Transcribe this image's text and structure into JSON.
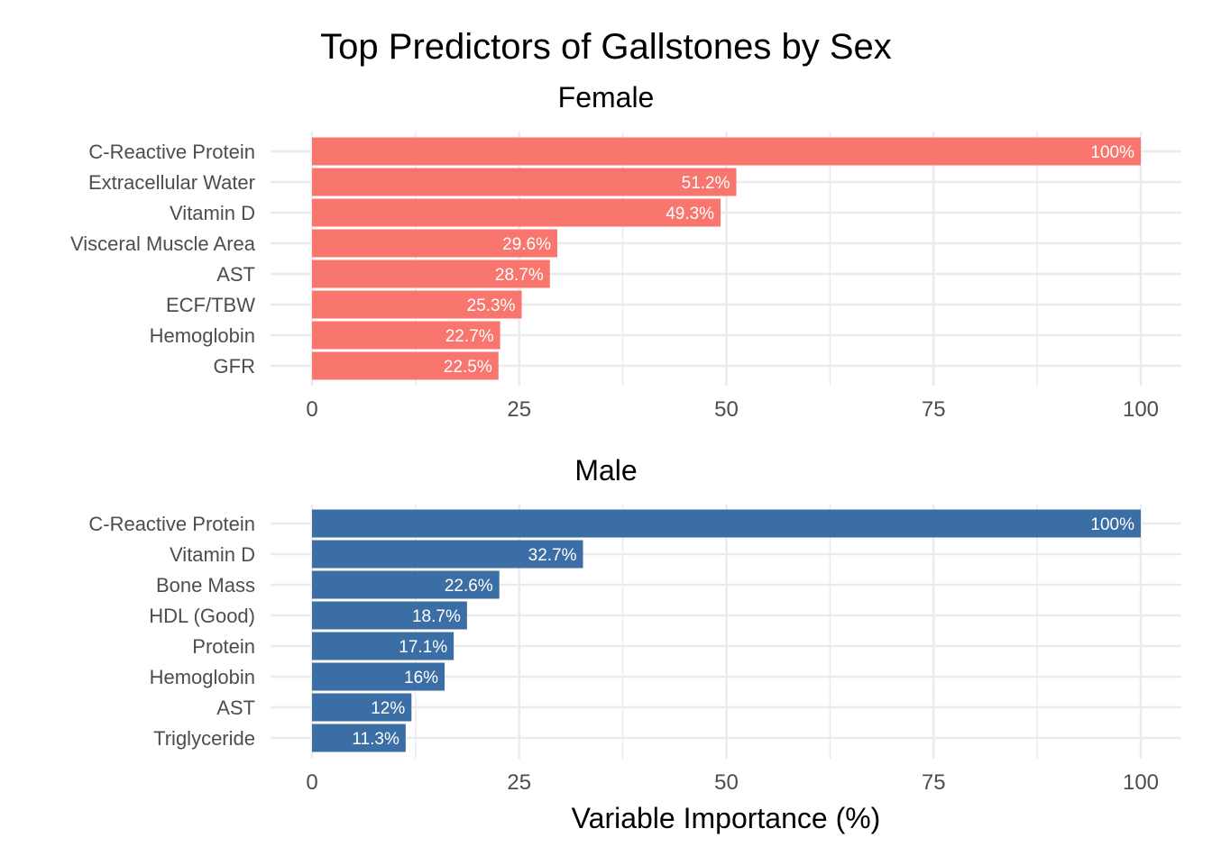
{
  "chart_data": {
    "type": "bar",
    "orientation": "horizontal",
    "title": "Top Predictors of Gallstones by Sex",
    "xlabel": "Variable Importance (%)",
    "xlim": [
      0,
      100
    ],
    "xticks": [
      "0",
      "25",
      "50",
      "75",
      "100"
    ],
    "grid": true,
    "panels": [
      {
        "name": "Female",
        "color": "#F8766D",
        "categories": [
          "C-Reactive Protein",
          "Extracellular Water",
          "Vitamin D",
          "Visceral Muscle Area",
          "AST",
          "ECF/TBW",
          "Hemoglobin",
          "GFR"
        ],
        "values": [
          100,
          51.2,
          49.3,
          29.6,
          28.7,
          25.3,
          22.7,
          22.5
        ],
        "labels": [
          "100%",
          "51.2%",
          "49.3%",
          "29.6%",
          "28.7%",
          "25.3%",
          "22.7%",
          "22.5%"
        ]
      },
      {
        "name": "Male",
        "color": "#3B6EA5",
        "categories": [
          "C-Reactive Protein",
          "Vitamin D",
          "Bone Mass",
          "HDL (Good)",
          "Protein",
          "Hemoglobin",
          "AST",
          "Triglyceride"
        ],
        "values": [
          100,
          32.7,
          22.6,
          18.7,
          17.1,
          16,
          12,
          11.3
        ],
        "labels": [
          "100%",
          "32.7%",
          "22.6%",
          "18.7%",
          "17.1%",
          "16%",
          "12%",
          "11.3%"
        ]
      }
    ]
  }
}
